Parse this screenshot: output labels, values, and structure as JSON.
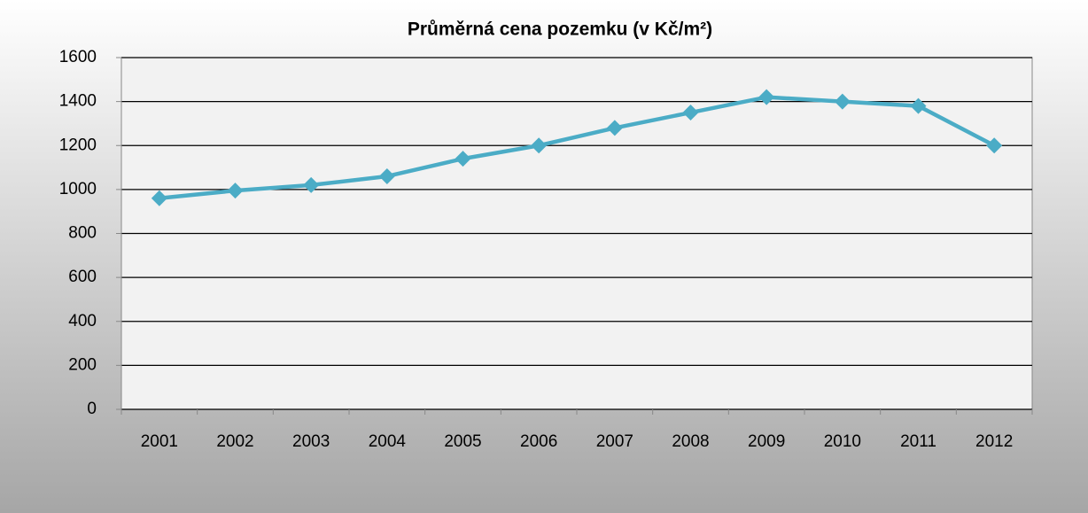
{
  "chart_data": {
    "type": "line",
    "title": "Průměrná cena pozemku  (v  Kč/m²)",
    "categories": [
      "2001",
      "2002",
      "2003",
      "2004",
      "2005",
      "2006",
      "2007",
      "2008",
      "2009",
      "2010",
      "2011",
      "2012"
    ],
    "series": [
      {
        "name": "Průměrná cena pozemku",
        "color": "#4bacc6",
        "values": [
          960,
          995,
          1020,
          1060,
          1140,
          1200,
          1280,
          1350,
          1420,
          1400,
          1380,
          1200
        ]
      }
    ],
    "ylim": [
      0,
      1600
    ],
    "yticks": [
      0,
      200,
      400,
      600,
      800,
      1000,
      1200,
      1400,
      1600
    ],
    "grid": true,
    "legend": false
  }
}
